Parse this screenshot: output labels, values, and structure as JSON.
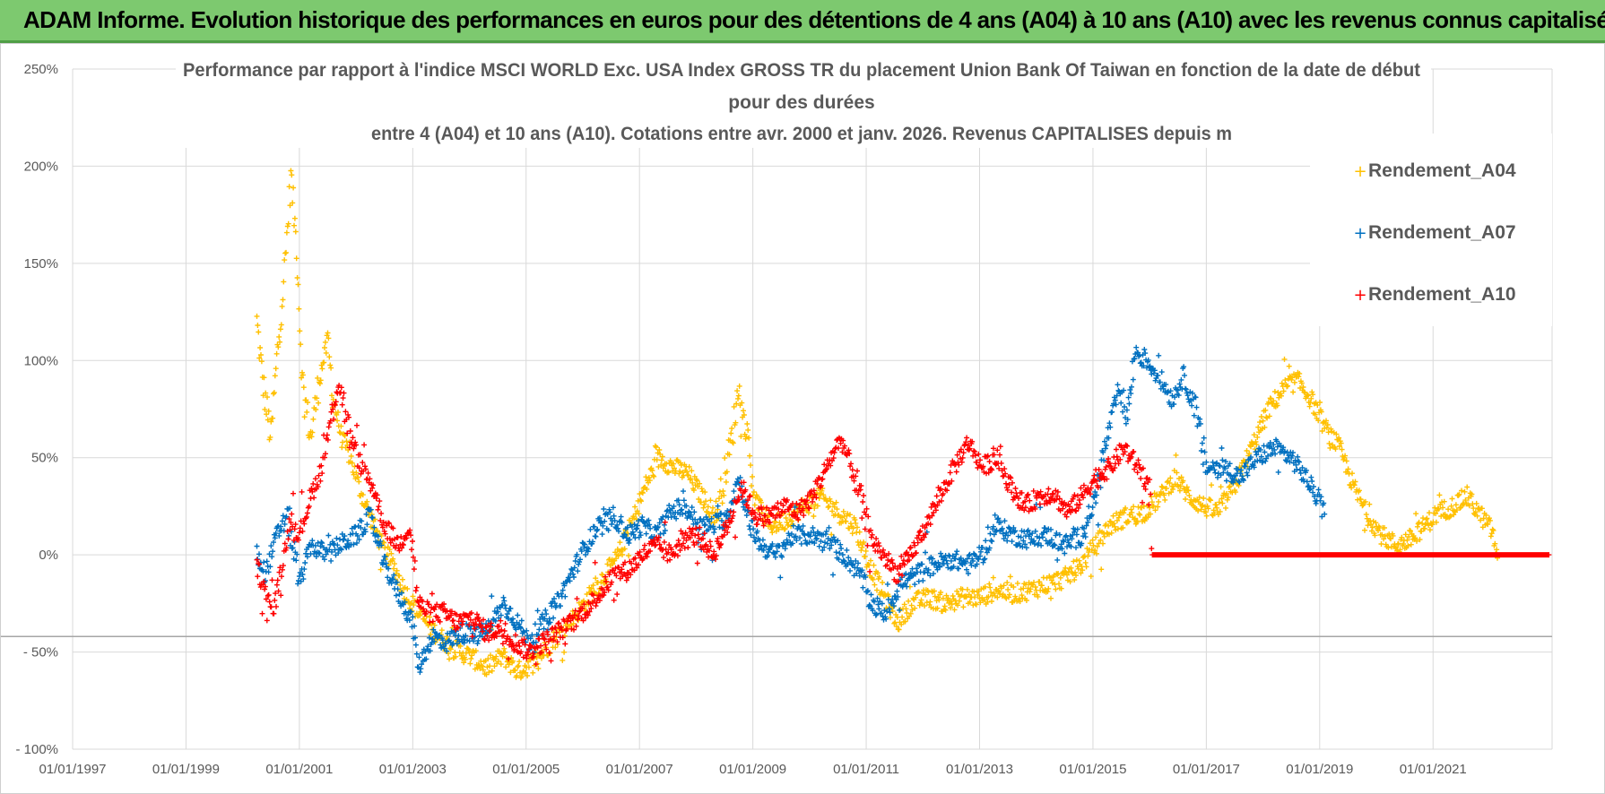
{
  "header": {
    "title": "ADAM Informe. Evolution historique des performances en euros pour des détentions de 4 ans (A04) à 10 ans (A10) avec les revenus connus capitalisés"
  },
  "chart_data": {
    "type": "scatter",
    "title_lines": [
      "Performance par rapport à l'indice MSCI WORLD Exc. USA Index GROSS TR  du placement Union Bank Of Taiwan  en fonction de la date de début",
      "pour des durées",
      "entre 4 (A04) et 10 ans (A10). Cotations entre avr. 2000 et janv. 2026. Revenus CAPITALISES depuis m"
    ],
    "x_tick_labels": [
      "01/01/1997",
      "01/01/1999",
      "01/01/2001",
      "01/01/2003",
      "01/01/2005",
      "01/01/2007",
      "01/01/2009",
      "01/01/2011",
      "01/01/2013",
      "01/01/2015",
      "01/01/2017",
      "01/01/2019",
      "01/01/2021"
    ],
    "x_tick_years": [
      1997,
      1999,
      2001,
      2003,
      2005,
      2007,
      2009,
      2011,
      2013,
      2015,
      2017,
      2019,
      2021
    ],
    "xlim": [
      1997,
      2023.1
    ],
    "y_tick_labels": [
      "250%",
      "200%",
      "150%",
      "100%",
      "50%",
      "0%",
      "- 50%",
      "- 100%"
    ],
    "y_tick_values": [
      250,
      200,
      150,
      100,
      50,
      0,
      -50,
      -100
    ],
    "ylim": [
      -100,
      250
    ],
    "reference_line_y": -42,
    "legend_position": "top-right",
    "series": [
      {
        "name": "Rendement_A04",
        "color": "#ffc000",
        "points": [
          [
            2000.25,
            120
          ],
          [
            2000.35,
            90
          ],
          [
            2000.5,
            60
          ],
          [
            2000.6,
            100
          ],
          [
            2000.75,
            150
          ],
          [
            2000.85,
            195
          ],
          [
            2000.95,
            160
          ],
          [
            2001.05,
            90
          ],
          [
            2001.2,
            60
          ],
          [
            2001.35,
            90
          ],
          [
            2001.5,
            110
          ],
          [
            2001.6,
            80
          ],
          [
            2001.75,
            60
          ],
          [
            2001.9,
            50
          ],
          [
            2002.05,
            35
          ],
          [
            2002.25,
            20
          ],
          [
            2002.45,
            5
          ],
          [
            2002.65,
            -5
          ],
          [
            2002.85,
            -18
          ],
          [
            2003.1,
            -30
          ],
          [
            2003.4,
            -40
          ],
          [
            2003.7,
            -48
          ],
          [
            2004.0,
            -52
          ],
          [
            2004.3,
            -58
          ],
          [
            2004.6,
            -52
          ],
          [
            2004.85,
            -60
          ],
          [
            2005.05,
            -57
          ],
          [
            2005.3,
            -50
          ],
          [
            2005.6,
            -40
          ],
          [
            2005.85,
            -32
          ],
          [
            2006.1,
            -22
          ],
          [
            2006.35,
            -12
          ],
          [
            2006.6,
            -2
          ],
          [
            2006.85,
            15
          ],
          [
            2007.1,
            35
          ],
          [
            2007.35,
            50
          ],
          [
            2007.6,
            45
          ],
          [
            2007.85,
            42
          ],
          [
            2008.1,
            30
          ],
          [
            2008.35,
            20
          ],
          [
            2008.6,
            55
          ],
          [
            2008.75,
            85
          ],
          [
            2008.9,
            60
          ],
          [
            2009.05,
            28
          ],
          [
            2009.3,
            15
          ],
          [
            2009.6,
            18
          ],
          [
            2009.9,
            25
          ],
          [
            2010.2,
            30
          ],
          [
            2010.5,
            22
          ],
          [
            2010.8,
            15
          ],
          [
            2011.05,
            -5
          ],
          [
            2011.3,
            -20
          ],
          [
            2011.55,
            -35
          ],
          [
            2011.8,
            -25
          ],
          [
            2012.1,
            -22
          ],
          [
            2012.4,
            -25
          ],
          [
            2012.7,
            -22
          ],
          [
            2013.0,
            -22
          ],
          [
            2013.3,
            -18
          ],
          [
            2013.6,
            -20
          ],
          [
            2013.9,
            -18
          ],
          [
            2014.2,
            -15
          ],
          [
            2014.5,
            -12
          ],
          [
            2014.8,
            -5
          ],
          [
            2015.05,
            5
          ],
          [
            2015.3,
            15
          ],
          [
            2015.6,
            20
          ],
          [
            2015.9,
            22
          ],
          [
            2016.2,
            30
          ],
          [
            2016.45,
            40
          ],
          [
            2016.7,
            30
          ],
          [
            2016.95,
            25
          ],
          [
            2017.2,
            22
          ],
          [
            2017.5,
            35
          ],
          [
            2017.8,
            55
          ],
          [
            2018.1,
            75
          ],
          [
            2018.35,
            85
          ],
          [
            2018.6,
            90
          ],
          [
            2018.85,
            80
          ],
          [
            2019.1,
            65
          ],
          [
            2019.35,
            55
          ],
          [
            2019.6,
            35
          ],
          [
            2019.85,
            20
          ],
          [
            2020.1,
            10
          ],
          [
            2020.35,
            5
          ],
          [
            2020.6,
            8
          ],
          [
            2020.85,
            15
          ],
          [
            2021.1,
            22
          ],
          [
            2021.35,
            25
          ],
          [
            2021.6,
            30
          ],
          [
            2021.85,
            20
          ],
          [
            2022.05,
            12
          ],
          [
            2022.15,
            -5
          ]
        ]
      },
      {
        "name": "Rendement_A07",
        "color": "#0070c0",
        "points": [
          [
            2000.25,
            0
          ],
          [
            2000.4,
            -10
          ],
          [
            2000.6,
            10
          ],
          [
            2000.8,
            20
          ],
          [
            2001.0,
            -15
          ],
          [
            2001.2,
            5
          ],
          [
            2001.5,
            0
          ],
          [
            2001.7,
            5
          ],
          [
            2002.0,
            10
          ],
          [
            2002.25,
            20
          ],
          [
            2002.5,
            -5
          ],
          [
            2002.75,
            -20
          ],
          [
            2003.0,
            -35
          ],
          [
            2003.1,
            -58
          ],
          [
            2003.35,
            -42
          ],
          [
            2003.6,
            -45
          ],
          [
            2003.85,
            -40
          ],
          [
            2004.1,
            -42
          ],
          [
            2004.35,
            -38
          ],
          [
            2004.6,
            -25
          ],
          [
            2004.85,
            -35
          ],
          [
            2005.05,
            -45
          ],
          [
            2005.3,
            -35
          ],
          [
            2005.55,
            -25
          ],
          [
            2005.8,
            -10
          ],
          [
            2006.05,
            5
          ],
          [
            2006.3,
            15
          ],
          [
            2006.55,
            20
          ],
          [
            2006.8,
            10
          ],
          [
            2007.05,
            15
          ],
          [
            2007.3,
            10
          ],
          [
            2007.55,
            22
          ],
          [
            2007.8,
            25
          ],
          [
            2008.05,
            15
          ],
          [
            2008.3,
            15
          ],
          [
            2008.55,
            20
          ],
          [
            2008.75,
            40
          ],
          [
            2008.95,
            15
          ],
          [
            2009.15,
            5
          ],
          [
            2009.4,
            0
          ],
          [
            2009.7,
            10
          ],
          [
            2010.0,
            10
          ],
          [
            2010.3,
            8
          ],
          [
            2010.6,
            0
          ],
          [
            2010.9,
            -10
          ],
          [
            2011.1,
            -25
          ],
          [
            2011.35,
            -30
          ],
          [
            2011.6,
            -15
          ],
          [
            2011.9,
            -10
          ],
          [
            2012.2,
            -5
          ],
          [
            2012.5,
            -2
          ],
          [
            2012.8,
            -5
          ],
          [
            2013.05,
            0
          ],
          [
            2013.3,
            15
          ],
          [
            2013.6,
            10
          ],
          [
            2013.9,
            8
          ],
          [
            2014.2,
            10
          ],
          [
            2014.5,
            5
          ],
          [
            2014.8,
            10
          ],
          [
            2015.05,
            30
          ],
          [
            2015.25,
            60
          ],
          [
            2015.45,
            85
          ],
          [
            2015.6,
            70
          ],
          [
            2015.75,
            105
          ],
          [
            2015.95,
            100
          ],
          [
            2016.2,
            90
          ],
          [
            2016.4,
            80
          ],
          [
            2016.6,
            92
          ],
          [
            2016.8,
            75
          ],
          [
            2017.0,
            45
          ],
          [
            2017.3,
            45
          ],
          [
            2017.6,
            40
          ],
          [
            2017.9,
            50
          ],
          [
            2018.2,
            55
          ],
          [
            2018.5,
            50
          ],
          [
            2018.75,
            40
          ],
          [
            2018.95,
            30
          ],
          [
            2019.1,
            20
          ]
        ]
      },
      {
        "name": "Rendement_A10",
        "color": "#ff0000",
        "points": [
          [
            2000.25,
            -5
          ],
          [
            2000.4,
            -20
          ],
          [
            2000.55,
            -28
          ],
          [
            2000.7,
            -5
          ],
          [
            2000.85,
            20
          ],
          [
            2001.0,
            10
          ],
          [
            2001.2,
            30
          ],
          [
            2001.4,
            45
          ],
          [
            2001.55,
            70
          ],
          [
            2001.7,
            90
          ],
          [
            2001.9,
            60
          ],
          [
            2002.1,
            45
          ],
          [
            2002.3,
            35
          ],
          [
            2002.5,
            15
          ],
          [
            2002.75,
            5
          ],
          [
            2002.95,
            15
          ],
          [
            2003.1,
            -25
          ],
          [
            2003.3,
            -30
          ],
          [
            2003.55,
            -30
          ],
          [
            2003.8,
            -35
          ],
          [
            2004.05,
            -32
          ],
          [
            2004.3,
            -40
          ],
          [
            2004.55,
            -38
          ],
          [
            2004.8,
            -45
          ],
          [
            2005.05,
            -50
          ],
          [
            2005.3,
            -45
          ],
          [
            2005.55,
            -40
          ],
          [
            2005.8,
            -35
          ],
          [
            2006.05,
            -28
          ],
          [
            2006.3,
            -20
          ],
          [
            2006.55,
            -10
          ],
          [
            2006.8,
            -8
          ],
          [
            2007.05,
            0
          ],
          [
            2007.3,
            5
          ],
          [
            2007.55,
            0
          ],
          [
            2007.8,
            8
          ],
          [
            2008.05,
            10
          ],
          [
            2008.3,
            0
          ],
          [
            2008.55,
            15
          ],
          [
            2008.8,
            35
          ],
          [
            2009.05,
            20
          ],
          [
            2009.3,
            20
          ],
          [
            2009.55,
            25
          ],
          [
            2009.8,
            22
          ],
          [
            2010.05,
            30
          ],
          [
            2010.3,
            45
          ],
          [
            2010.55,
            60
          ],
          [
            2010.8,
            40
          ],
          [
            2011.05,
            10
          ],
          [
            2011.3,
            0
          ],
          [
            2011.55,
            -10
          ],
          [
            2011.8,
            0
          ],
          [
            2012.05,
            15
          ],
          [
            2012.3,
            30
          ],
          [
            2012.55,
            45
          ],
          [
            2012.8,
            58
          ],
          [
            2013.05,
            45
          ],
          [
            2013.3,
            50
          ],
          [
            2013.55,
            35
          ],
          [
            2013.8,
            25
          ],
          [
            2014.05,
            30
          ],
          [
            2014.3,
            32
          ],
          [
            2014.55,
            22
          ],
          [
            2014.8,
            30
          ],
          [
            2015.05,
            40
          ],
          [
            2015.3,
            45
          ],
          [
            2015.55,
            55
          ],
          [
            2015.8,
            45
          ],
          [
            2016.0,
            35
          ],
          [
            2016.05,
            0
          ],
          [
            2023.05,
            0
          ]
        ]
      }
    ]
  }
}
